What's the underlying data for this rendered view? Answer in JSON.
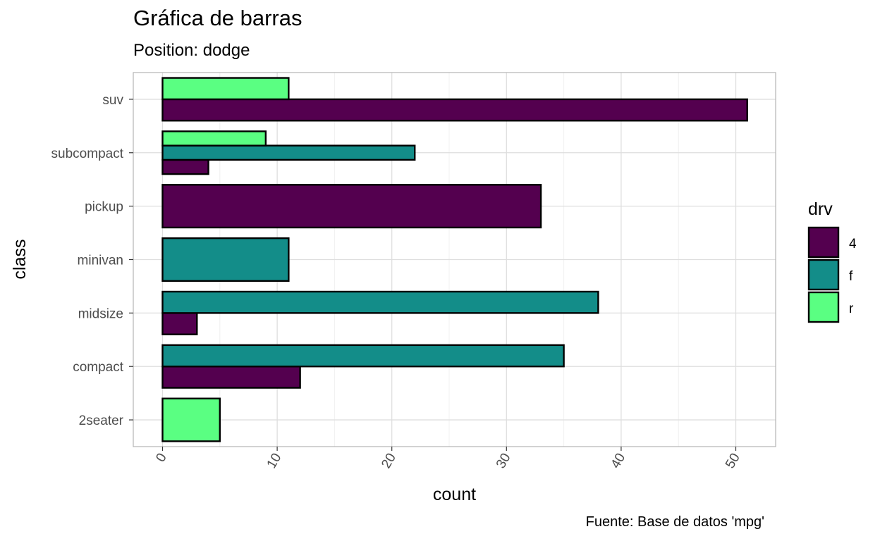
{
  "chart_data": {
    "type": "bar",
    "orientation": "horizontal",
    "position": "dodge",
    "title": "Gráfica de barras",
    "subtitle": "Position: dodge",
    "caption": "Fuente: Base de datos 'mpg'",
    "xlabel": "count",
    "ylabel": "class",
    "xlim": [
      0,
      53
    ],
    "x_ticks": [
      0,
      10,
      20,
      30,
      40,
      50
    ],
    "x_tick_labels": [
      "0",
      "10",
      "20",
      "30",
      "40",
      "50"
    ],
    "x_tick_rotation": "angled",
    "grid": true,
    "categories": [
      "2seater",
      "compact",
      "midsize",
      "minivan",
      "pickup",
      "subcompact",
      "suv"
    ],
    "legend": {
      "title": "drv",
      "placement": "right"
    },
    "series": [
      {
        "name": "4",
        "color": "#54004f",
        "values": [
          null,
          12,
          3,
          null,
          33,
          4,
          51
        ]
      },
      {
        "name": "f",
        "color": "#138d89",
        "values": [
          null,
          35,
          38,
          11,
          null,
          22,
          null
        ]
      },
      {
        "name": "r",
        "color": "#5aff82",
        "values": [
          5,
          null,
          null,
          null,
          null,
          9,
          11
        ]
      }
    ]
  }
}
